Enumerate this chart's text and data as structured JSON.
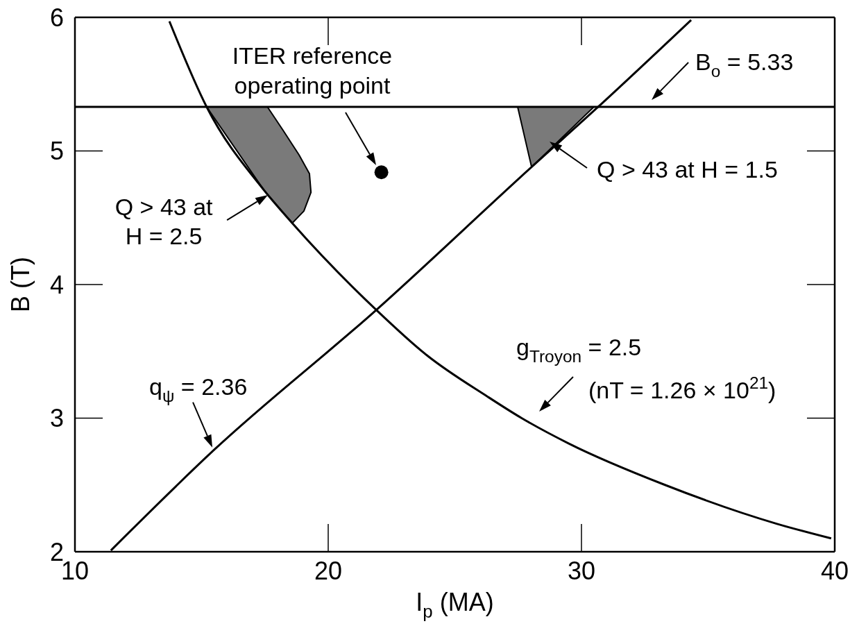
{
  "chart_data": {
    "type": "line",
    "xlabel": "I$_{p}$ (MA)",
    "ylabel": "B (T)",
    "xlim": [
      10,
      40
    ],
    "ylim": [
      2,
      6
    ],
    "xticks": [
      10,
      20,
      30,
      40
    ],
    "yticks": [
      2,
      3,
      4,
      5,
      6
    ],
    "marker": "none",
    "line_style": "solid",
    "series": [
      {
        "type": "area",
        "color": "#7a7a7a",
        "x": [
          15.2,
          17.6,
          18.2,
          18.85,
          19.26,
          19.32,
          19.04,
          18.58,
          17.45,
          16.0,
          15.2
        ],
        "values": [
          5.33,
          5.33,
          5.16,
          4.97,
          4.83,
          4.69,
          4.55,
          4.46,
          4.71,
          5.11,
          5.33
        ]
      },
      {
        "type": "area",
        "color": "#7a7a7a",
        "x": [
          27.48,
          30.49,
          28.03,
          27.48
        ],
        "values": [
          5.33,
          5.33,
          4.88,
          5.33
        ]
      },
      {
        "color": "#000000",
        "x": [
          13.73,
          15.2,
          17.45,
          18.58,
          21.9,
          23.9,
          26.3,
          27.64,
          29.5,
          33.3,
          37.7,
          39.86
        ],
        "values": [
          5.97,
          5.33,
          4.71,
          4.46,
          3.81,
          3.47,
          3.16,
          3.0,
          2.81,
          2.5,
          2.21,
          2.1
        ]
      },
      {
        "color": "#000000",
        "x": [
          11.42,
          15.48,
          21.9,
          28.03,
          30.66,
          34.33
        ],
        "values": [
          2.01,
          2.76,
          3.81,
          4.88,
          5.33,
          5.98
        ]
      },
      {
        "type": "scatter",
        "color": "#000000",
        "marker": "circle",
        "x": [
          22.1
        ],
        "values": [
          4.84
        ]
      }
    ],
    "ref_lines": [
      {
        "axis": "y",
        "value": 5.33,
        "label": "B$_{o}$ = 5.33",
        "color": "#000000"
      }
    ],
    "annotations": [
      "ITER reference operating point",
      {
        "text": "Q > 43 at H = 2.5",
        "x": 17.73,
        "y": 4.68
      },
      "Q > 43 at H = 1.5",
      {
        "text": "q$_{ψ}$ = 2.36",
        "x": 15.48,
        "y": 2.76
      },
      "g$_{Troyon}$ = 2.5",
      "(nT = 1.26 × 10$^{21}$)"
    ]
  }
}
